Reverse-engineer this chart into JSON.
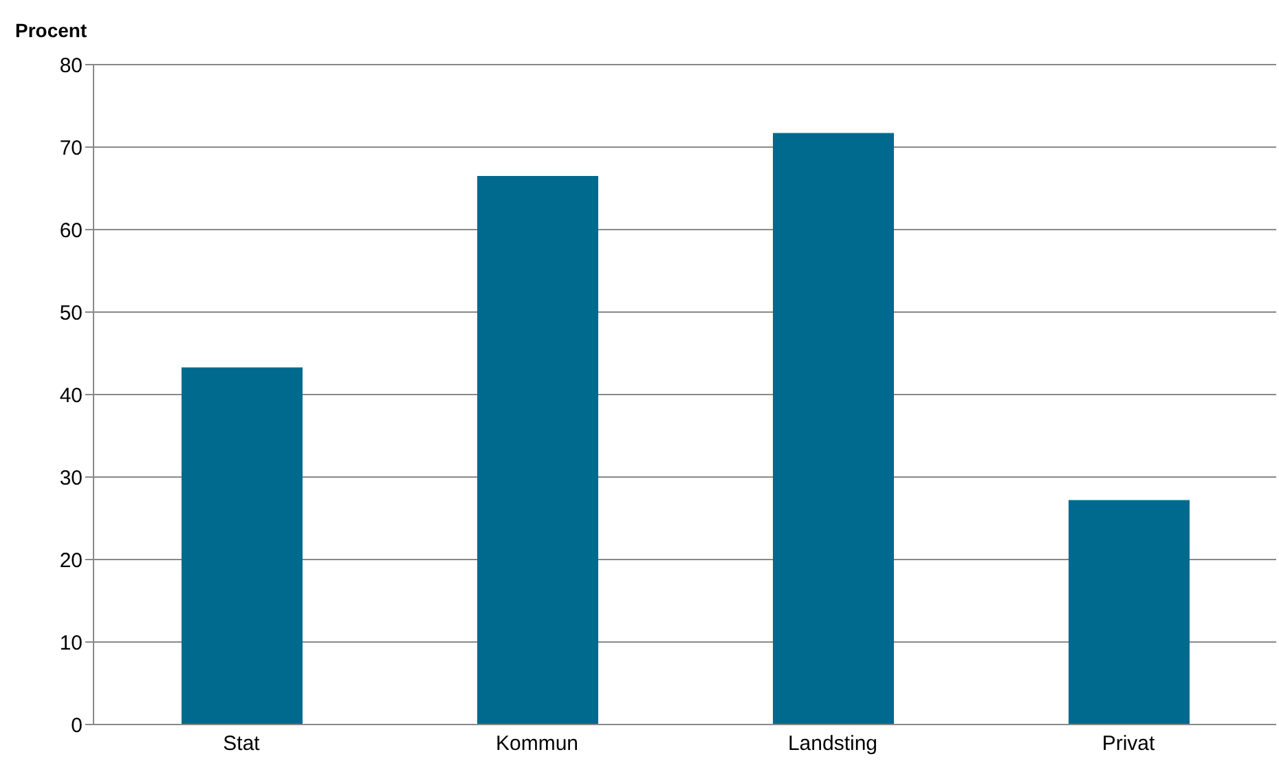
{
  "chart_data": {
    "type": "bar",
    "ylabel": "Procent",
    "categories": [
      "Stat",
      "Kommun",
      "Landsting",
      "Privat"
    ],
    "values": [
      43.3,
      66.5,
      71.7,
      27.2
    ],
    "color": "#006a8e",
    "ylim": [
      0,
      80
    ],
    "yticks": [
      0,
      10,
      20,
      30,
      40,
      50,
      60,
      70,
      80
    ],
    "grid": "y"
  }
}
